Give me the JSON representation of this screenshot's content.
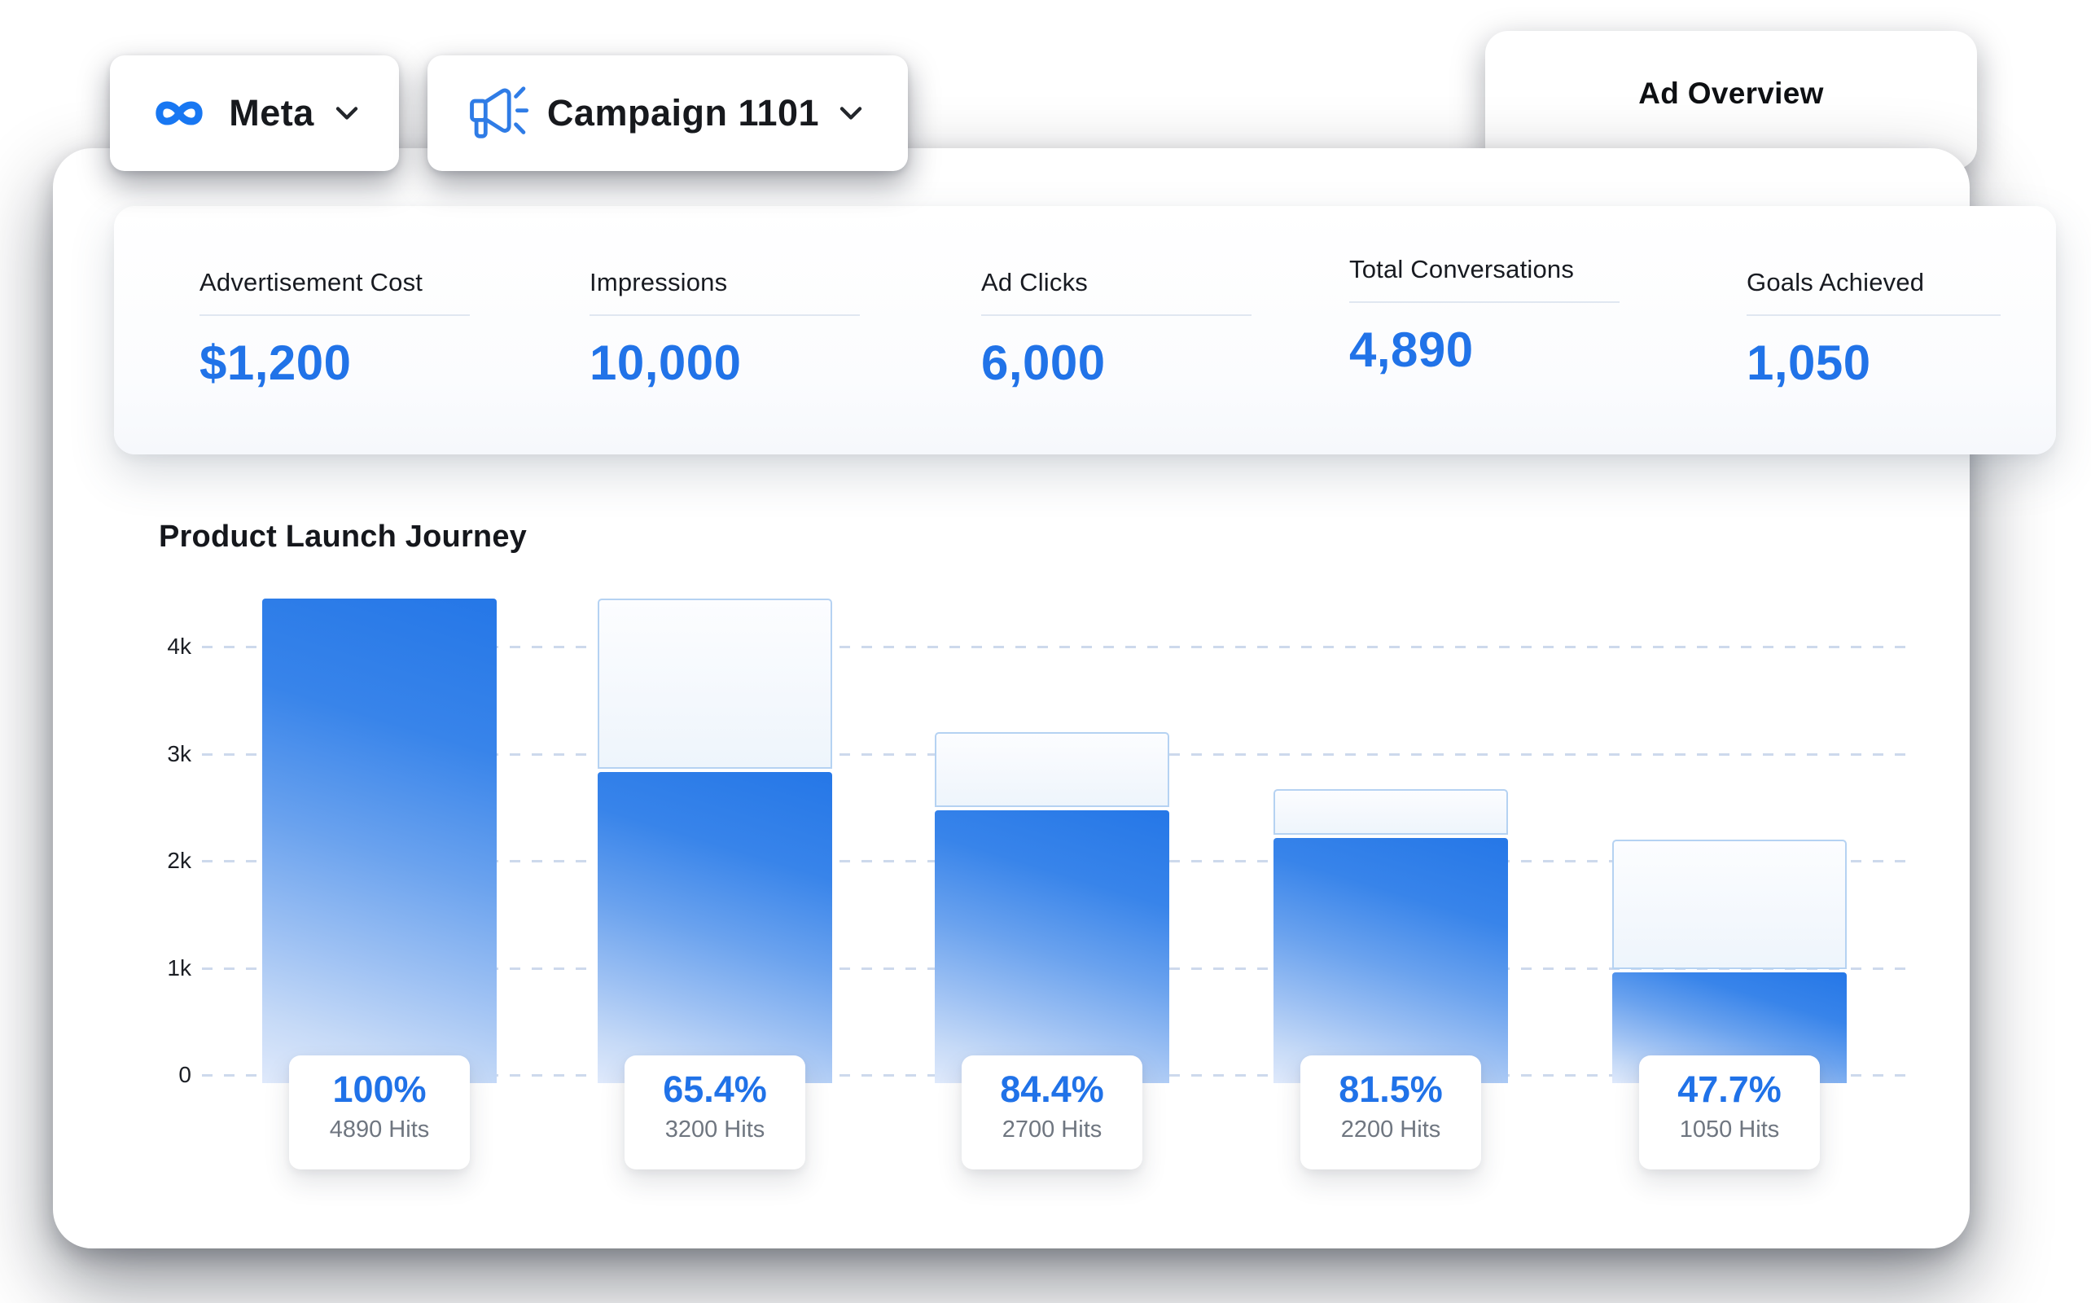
{
  "accent_color": "#2173e8",
  "header": {
    "platform_dropdown": {
      "label": "Meta",
      "icon": "meta-infinity-logo"
    },
    "campaign_dropdown": {
      "label": "Campaign 1101",
      "icon": "megaphone"
    },
    "overview_tab": {
      "label": "Ad Overview"
    }
  },
  "stats": [
    {
      "label": "Advertisement Cost",
      "value": "$1,200"
    },
    {
      "label": "Impressions",
      "value": "10,000"
    },
    {
      "label": "Ad Clicks",
      "value": "6,000"
    },
    {
      "label": "Total Conversations",
      "value": "4,890"
    },
    {
      "label": "Goals Achieved",
      "value": "1,050"
    }
  ],
  "chart_data": {
    "type": "bar",
    "title": "Product Launch Journey",
    "xlabel": "",
    "ylabel": "",
    "grid": "horizontal-dashed",
    "legend": "none",
    "y_axis": {
      "ticks": [
        {
          "label": "4k",
          "value": 4000
        },
        {
          "label": "3k",
          "value": 3000
        },
        {
          "label": "2k",
          "value": 2000
        },
        {
          "label": "1k",
          "value": 1000
        },
        {
          "label": "0",
          "value": 0
        }
      ],
      "plotted_max": 4450
    },
    "bars": [
      {
        "stage": 1,
        "pct": "100%",
        "hits": 4890,
        "hits_label": "4890 Hits",
        "plotted": 4450,
        "ghost_plotted": null
      },
      {
        "stage": 2,
        "pct": "65.4%",
        "hits": 3200,
        "hits_label": "3200 Hits",
        "plotted": 2830,
        "ghost_plotted": 4450
      },
      {
        "stage": 3,
        "pct": "84.4%",
        "hits": 2700,
        "hits_label": "2700 Hits",
        "plotted": 2470,
        "ghost_plotted": 3200
      },
      {
        "stage": 4,
        "pct": "81.5%",
        "hits": 2200,
        "hits_label": "2200 Hits",
        "plotted": 2210,
        "ghost_plotted": 2670
      },
      {
        "stage": 5,
        "pct": "47.7%",
        "hits": 1050,
        "hits_label": "1050 Hits",
        "plotted": 960,
        "ghost_plotted": 2200
      }
    ],
    "colors": {
      "bar_gradient_top": "#2577e7",
      "bar_gradient_bottom": "#dfe9fb",
      "ghost_border": "#b5d2f2",
      "gridline": "#cdd9ec",
      "pct_text": "#2072e8",
      "hits_text": "#6f7680"
    }
  }
}
